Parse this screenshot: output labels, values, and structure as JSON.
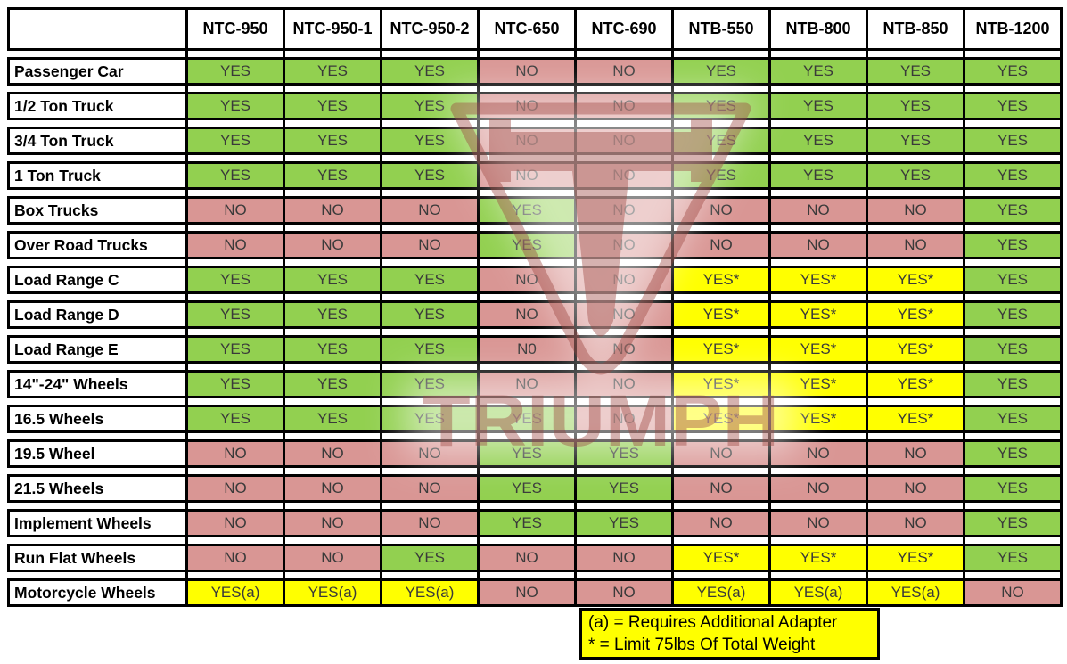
{
  "colors": {
    "yes_bg": "#92D050",
    "no_bg": "#D99694",
    "conditional_bg": "#FFFF00",
    "border": "#000000",
    "value_text": "#3A3A3A",
    "watermark": "#9A423C",
    "legend_bg": "#FFFF00"
  },
  "watermark": {
    "text": "TRIUMPH"
  },
  "legend": {
    "line1": "(a) = Requires Additional Adapter",
    "line2": "* = Limit 75lbs Of Total Weight"
  },
  "chart_data": {
    "type": "table",
    "columns": [
      "NTC-950",
      "NTC-950-1",
      "NTC-950-2",
      "NTC-650",
      "NTC-690",
      "NTB-550",
      "NTB-800",
      "NTB-850",
      "NTB-1200"
    ],
    "rows": [
      {
        "label": "Passenger Car",
        "values": [
          "YES",
          "YES",
          "YES",
          "NO",
          "NO",
          "YES",
          "YES",
          "YES",
          "YES"
        ]
      },
      {
        "label": "1/2 Ton Truck",
        "values": [
          "YES",
          "YES",
          "YES",
          "NO",
          "NO",
          "YES",
          "YES",
          "YES",
          "YES"
        ]
      },
      {
        "label": "3/4 Ton Truck",
        "values": [
          "YES",
          "YES",
          "YES",
          "NO",
          "NO",
          "YES",
          "YES",
          "YES",
          "YES"
        ]
      },
      {
        "label": "1 Ton Truck",
        "values": [
          "YES",
          "YES",
          "YES",
          "NO",
          "NO",
          "YES",
          "YES",
          "YES",
          "YES"
        ]
      },
      {
        "label": "Box Trucks",
        "values": [
          "NO",
          "NO",
          "NO",
          "YES",
          "NO",
          "NO",
          "NO",
          "NO",
          "YES"
        ]
      },
      {
        "label": "Over Road Trucks",
        "values": [
          "NO",
          "NO",
          "NO",
          "YES",
          "NO",
          "NO",
          "NO",
          "NO",
          "YES"
        ]
      },
      {
        "label": "Load Range C",
        "values": [
          "YES",
          "YES",
          "YES",
          "NO",
          "NO",
          "YES*",
          "YES*",
          "YES*",
          "YES"
        ]
      },
      {
        "label": "Load Range D",
        "values": [
          "YES",
          "YES",
          "YES",
          "NO",
          "NO",
          "YES*",
          "YES*",
          "YES*",
          "YES"
        ]
      },
      {
        "label": "Load Range E",
        "values": [
          "YES",
          "YES",
          "YES",
          "N0",
          "NO",
          "YES*",
          "YES*",
          "YES*",
          "YES"
        ]
      },
      {
        "label": "14\"-24\" Wheels",
        "values": [
          "YES",
          "YES",
          "YES",
          "NO",
          "NO",
          "YES*",
          "YES*",
          "YES*",
          "YES"
        ]
      },
      {
        "label": "16.5 Wheels",
        "values": [
          "YES",
          "YES",
          "YES",
          "YES",
          "NO",
          "YES*",
          "YES*",
          "YES*",
          "YES"
        ]
      },
      {
        "label": "19.5 Wheel",
        "values": [
          "NO",
          "NO",
          "NO",
          "YES",
          "YES",
          "NO",
          "NO",
          "NO",
          "YES"
        ]
      },
      {
        "label": "21.5 Wheels",
        "values": [
          "NO",
          "NO",
          "NO",
          "YES",
          "YES",
          "NO",
          "NO",
          "NO",
          "YES"
        ]
      },
      {
        "label": "Implement Wheels",
        "values": [
          "NO",
          "NO",
          "NO",
          "YES",
          "YES",
          "NO",
          "NO",
          "NO",
          "YES"
        ]
      },
      {
        "label": "Run Flat Wheels",
        "values": [
          "NO",
          "NO",
          "YES",
          "NO",
          "NO",
          "YES*",
          "YES*",
          "YES*",
          "YES"
        ]
      },
      {
        "label": "Motorcycle Wheels",
        "values": [
          "YES(a)",
          "YES(a)",
          "YES(a)",
          "NO",
          "NO",
          "YES(a)",
          "YES(a)",
          "YES(a)",
          "NO"
        ]
      }
    ]
  }
}
